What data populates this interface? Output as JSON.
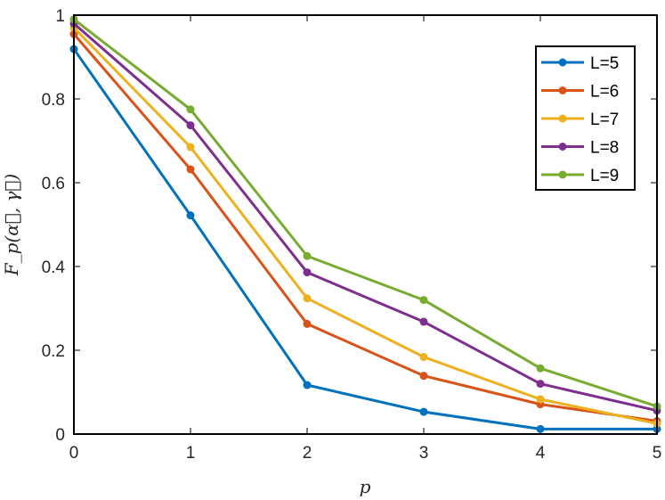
{
  "chart_data": {
    "type": "line",
    "x": [
      0,
      1,
      2,
      3,
      4,
      5
    ],
    "xlabel": "p",
    "ylabel": "F_p(α⃗, γ⃗)",
    "xlim": [
      0,
      5
    ],
    "ylim": [
      0,
      1
    ],
    "xticks": [
      "0",
      "1",
      "2",
      "3",
      "4",
      "5"
    ],
    "yticks": [
      "0",
      "0.2",
      "0.4",
      "0.6",
      "0.8",
      "1"
    ],
    "grid": false,
    "legend_position": "top-right",
    "series": [
      {
        "name": "L=5",
        "color": "#0072BD",
        "values": [
          0.919,
          0.522,
          0.117,
          0.053,
          0.012,
          0.012
        ]
      },
      {
        "name": "L=6",
        "color": "#D95319",
        "values": [
          0.955,
          0.632,
          0.263,
          0.139,
          0.071,
          0.031
        ]
      },
      {
        "name": "L=7",
        "color": "#EDB120",
        "values": [
          0.97,
          0.685,
          0.324,
          0.184,
          0.083,
          0.025
        ]
      },
      {
        "name": "L=8",
        "color": "#7E2F8E",
        "values": [
          0.98,
          0.737,
          0.386,
          0.268,
          0.12,
          0.056
        ]
      },
      {
        "name": "L=9",
        "color": "#77AC30",
        "values": [
          0.99,
          0.775,
          0.425,
          0.32,
          0.157,
          0.066
        ]
      }
    ]
  }
}
